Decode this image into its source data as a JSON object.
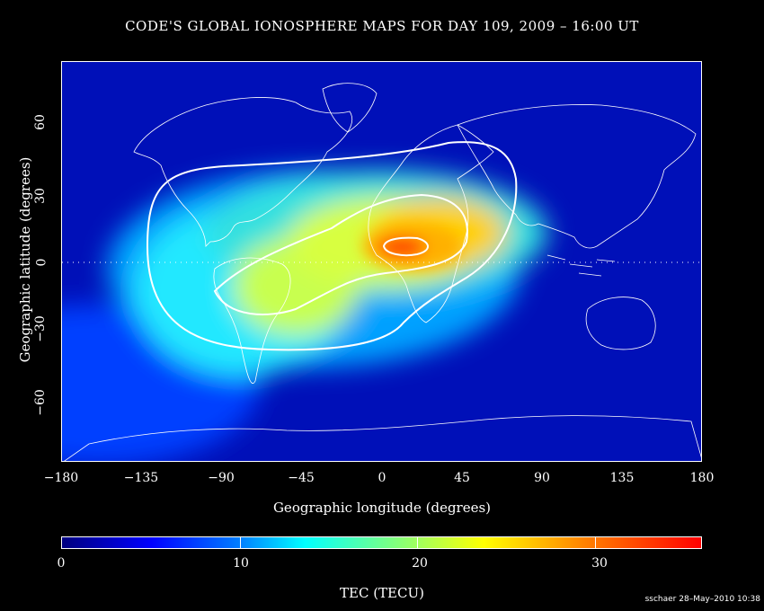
{
  "title": "CODE'S GLOBAL IONOSPHERE MAPS FOR DAY 109, 2009 – 16:00 UT",
  "x_axis": {
    "label": "Geographic longitude (degrees)",
    "ticks": [
      "−180",
      "−135",
      "−90",
      "−45",
      "0",
      "45",
      "90",
      "135",
      "180"
    ]
  },
  "y_axis": {
    "label": "Geographic latitude (degrees)",
    "ticks": [
      "60",
      "30",
      "0",
      "−30",
      "−60"
    ]
  },
  "colorbar": {
    "label": "TEC (TECU)",
    "ticks": [
      "0",
      "10",
      "20",
      "30"
    ],
    "range": [
      0,
      36
    ]
  },
  "credit": "sschaer 28–May–2010 10:38",
  "map_data": {
    "type": "heatmap",
    "quantity": "TEC (TECU)",
    "lon_range": [
      -180,
      180
    ],
    "lat_range": [
      -87.5,
      87.5
    ],
    "background_tec": 3,
    "enhancements": [
      {
        "region": "equatorial crest Africa",
        "center": [
          15,
          8
        ],
        "peak_tec": 34
      },
      {
        "region": "Atlantic / West Africa",
        "center": [
          -10,
          10
        ],
        "peak_tec": 27
      },
      {
        "region": "South America",
        "center": [
          -55,
          -5
        ],
        "peak_tec": 20
      },
      {
        "region": "Pacific east",
        "center": [
          -115,
          10
        ],
        "peak_tec": 14
      }
    ],
    "contour_levels": [
      10,
      20,
      30
    ]
  }
}
